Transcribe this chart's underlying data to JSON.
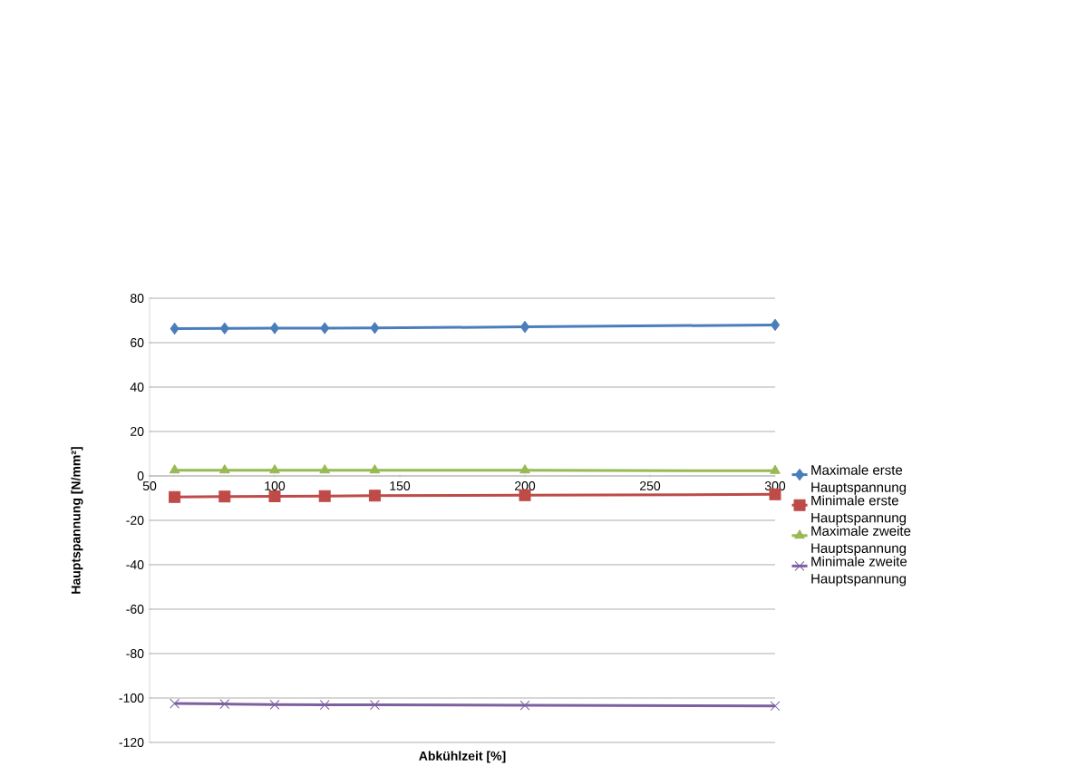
{
  "chart_data": {
    "type": "line",
    "xlabel": "Abkühlzeit [%]",
    "ylabel": "Hauptspannung [N/mm²]",
    "x": [
      60,
      80,
      100,
      120,
      140,
      200,
      300
    ],
    "series": [
      {
        "name": "Maximale erste Hauptspannung",
        "color": "#4a7ebb",
        "marker": "diamond",
        "values": [
          66.3,
          66.4,
          66.5,
          66.5,
          66.6,
          67.1,
          68
        ]
      },
      {
        "name": "Minimale erste Hauptspannung",
        "color": "#be4b48",
        "marker": "square",
        "values": [
          -9.5,
          -9.3,
          -9.2,
          -9.1,
          -8.9,
          -8.7,
          -8.3
        ]
      },
      {
        "name": "Maximale zweite Hauptspannung",
        "color": "#98b954",
        "marker": "triangle",
        "values": [
          2.5,
          2.5,
          2.5,
          2.5,
          2.5,
          2.5,
          2.3
        ]
      },
      {
        "name": "Minimale zweite Hauptspannung",
        "color": "#7d60a0",
        "marker": "cross",
        "values": [
          -102.5,
          -102.7,
          -103,
          -103.1,
          -103.1,
          -103.3,
          -103.6
        ]
      }
    ],
    "xlim": [
      50,
      300
    ],
    "xticks": [
      50,
      100,
      150,
      200,
      250,
      300
    ],
    "ylim": [
      -120,
      80
    ],
    "yticks": [
      -120,
      -100,
      -80,
      -60,
      -40,
      -20,
      0,
      20,
      40,
      60,
      80
    ],
    "grid": "y",
    "legend": "right",
    "line_style": "solid"
  }
}
